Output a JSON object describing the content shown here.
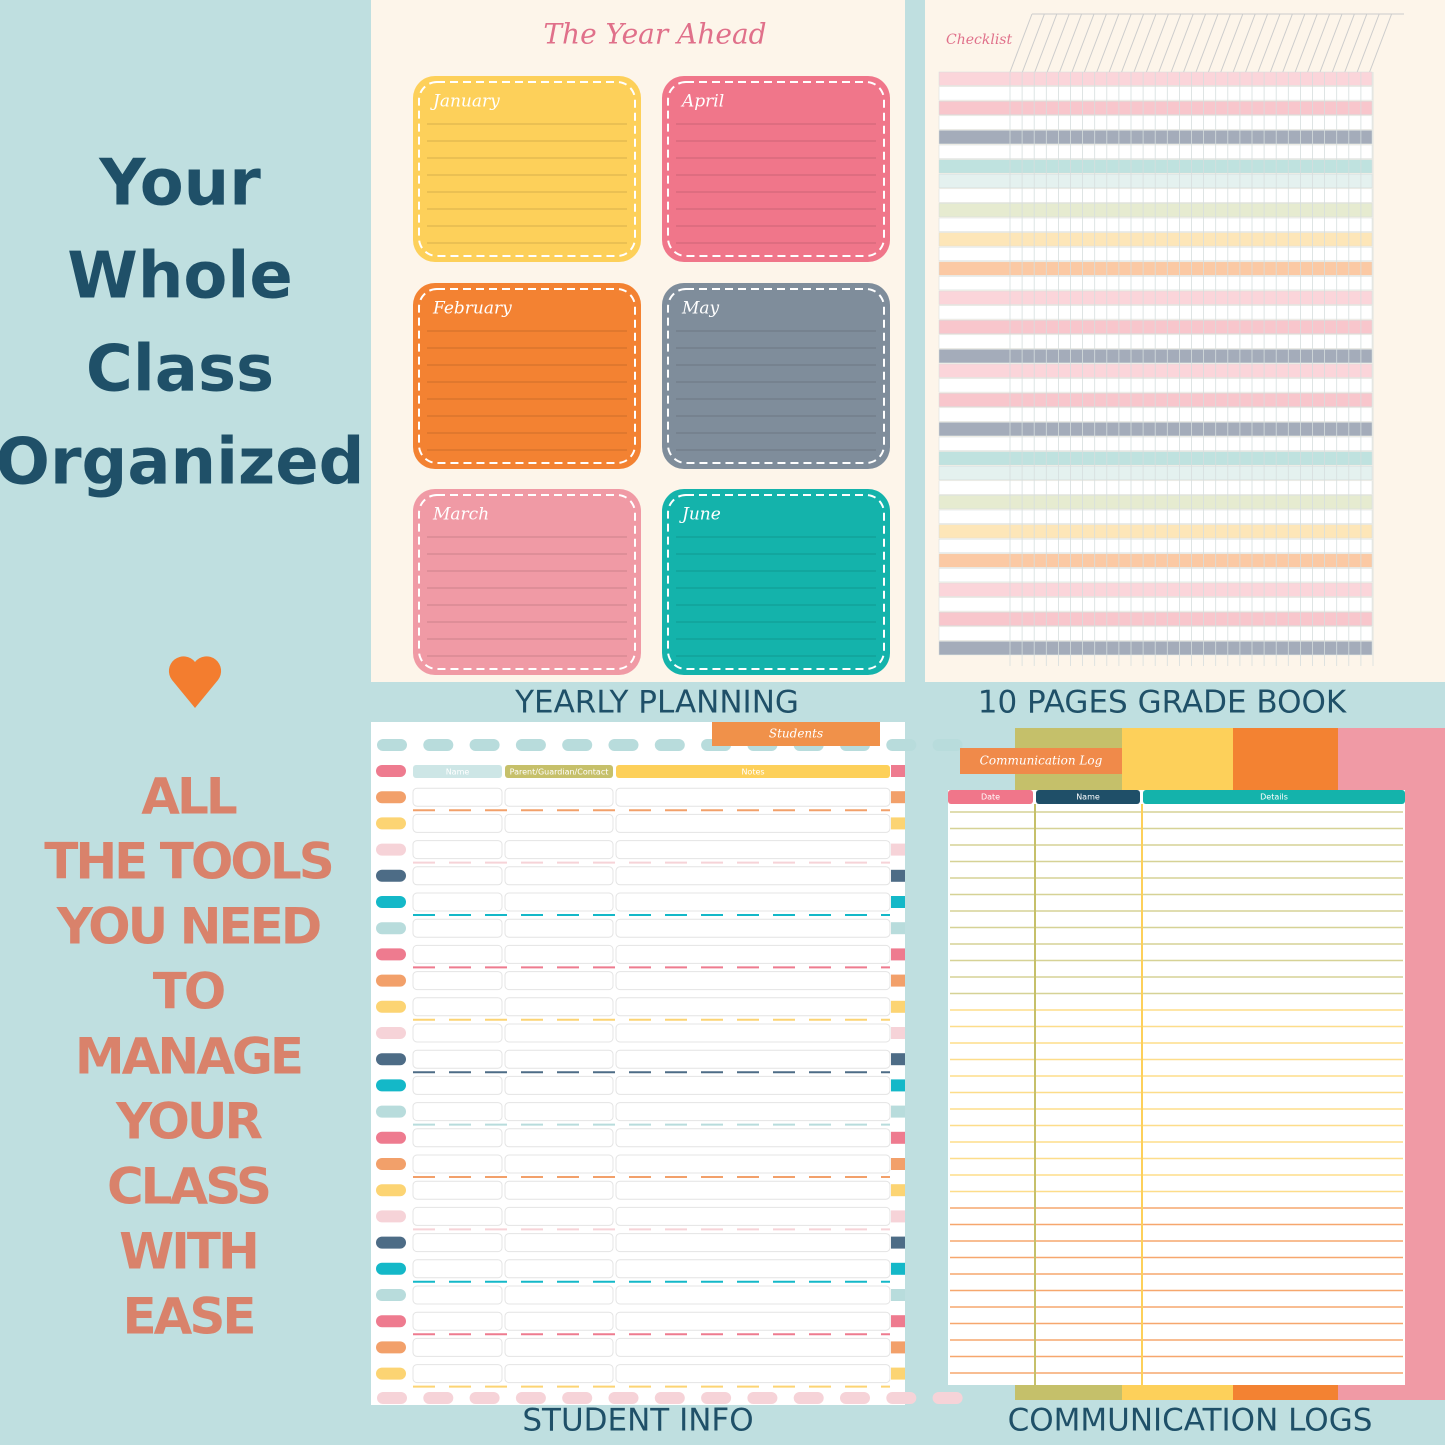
{
  "headline": [
    "Your",
    "Whole",
    "Class",
    "Organized"
  ],
  "tagline": [
    "ALL",
    "THE TOOLS",
    "YOU NEED",
    "TO",
    "MANAGE",
    "YOUR",
    "CLASS",
    "WITH",
    "EASE"
  ],
  "panels": [
    {
      "caption": "YEARLY PLANNING",
      "title": "The Year Ahead",
      "months": [
        "January",
        "April",
        "February",
        "May",
        "March",
        "June"
      ]
    },
    {
      "caption": "10 PAGES GRADE BOOK",
      "title": "Checklist"
    },
    {
      "caption": "STUDENT INFO",
      "title": "Students",
      "columns": [
        "Name",
        "Parent/Guardian/Contact",
        "Notes"
      ]
    },
    {
      "caption": "COMMUNICATION LOGS",
      "title": "Communication Log",
      "columns": [
        "Date",
        "Name",
        "Details"
      ]
    }
  ]
}
